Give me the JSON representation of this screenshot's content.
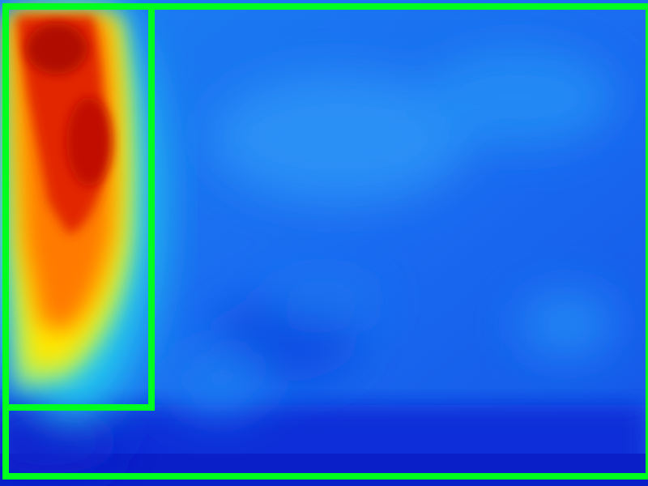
{
  "image": {
    "kind": "thermal-heatmap",
    "palette": {
      "cold": "#0a2ad6",
      "cool": "#1a6cf0",
      "mid": "#22c8f0",
      "warm": "#ffe800",
      "hot": "#ff7a00",
      "hottest": "#c80a00"
    },
    "box_color": "#00ff1e",
    "regions": {
      "hot_region_label": "",
      "background_label": ""
    }
  }
}
